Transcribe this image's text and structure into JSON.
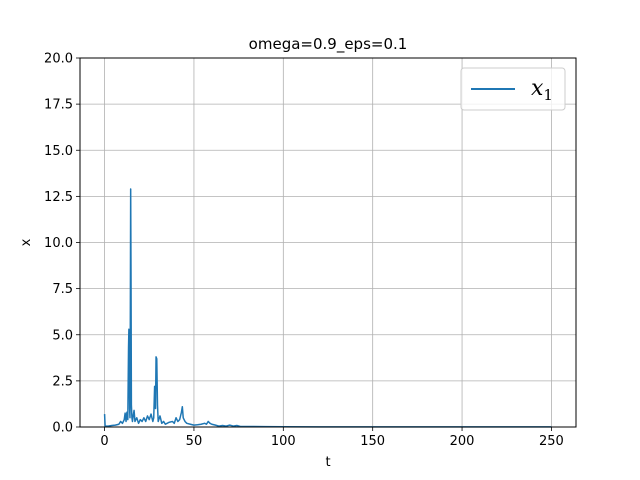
{
  "chart_data": {
    "type": "line",
    "title": "omega=0.9_eps=0.1",
    "xlabel": "t",
    "ylabel": "x",
    "xlim": [
      -13.75,
      263.75
    ],
    "ylim": [
      0,
      20
    ],
    "xticks": [
      0,
      50,
      100,
      150,
      200,
      250
    ],
    "yticks": [
      0.0,
      2.5,
      5.0,
      7.5,
      10.0,
      12.5,
      15.0,
      17.5,
      20.0
    ],
    "xtick_labels": [
      "0",
      "50",
      "100",
      "150",
      "200",
      "250"
    ],
    "ytick_labels": [
      "0.0",
      "2.5",
      "5.0",
      "7.5",
      "10.0",
      "12.5",
      "15.0",
      "17.5",
      "20.0"
    ],
    "grid": true,
    "legend": {
      "placement": "top-right",
      "entries": [
        {
          "name": "x",
          "subscript": "1",
          "color": "#1f77b4"
        }
      ]
    },
    "series": [
      {
        "name": "x_1",
        "color": "#1f77b4",
        "points": [
          [
            0,
            0.7
          ],
          [
            0.3,
            0.05
          ],
          [
            2,
            0.05
          ],
          [
            4,
            0.08
          ],
          [
            6,
            0.1
          ],
          [
            8,
            0.15
          ],
          [
            9,
            0.3
          ],
          [
            10,
            0.2
          ],
          [
            11,
            0.4
          ],
          [
            11.5,
            0.75
          ],
          [
            12,
            0.3
          ],
          [
            12.5,
            0.8
          ],
          [
            13,
            0.4
          ],
          [
            13.4,
            4.3
          ],
          [
            13.6,
            5.3
          ],
          [
            13.8,
            4.2
          ],
          [
            14,
            1.0
          ],
          [
            14.2,
            0.5
          ],
          [
            14.4,
            5.5
          ],
          [
            14.6,
            12.9
          ],
          [
            14.8,
            8.0
          ],
          [
            15,
            1.2
          ],
          [
            15.3,
            0.5
          ],
          [
            15.6,
            0.3
          ],
          [
            16,
            0.6
          ],
          [
            16.5,
            0.9
          ],
          [
            17,
            0.3
          ],
          [
            18,
            0.5
          ],
          [
            19,
            0.2
          ],
          [
            20,
            0.4
          ],
          [
            21,
            0.3
          ],
          [
            22,
            0.5
          ],
          [
            23,
            0.3
          ],
          [
            24,
            0.6
          ],
          [
            25,
            0.4
          ],
          [
            26,
            0.7
          ],
          [
            27,
            0.3
          ],
          [
            27.5,
            0.5
          ],
          [
            28,
            2.2
          ],
          [
            28.5,
            1.0
          ],
          [
            28.8,
            3.8
          ],
          [
            29.2,
            3.7
          ],
          [
            29.6,
            1.2
          ],
          [
            30,
            0.3
          ],
          [
            31,
            0.6
          ],
          [
            32,
            0.2
          ],
          [
            33,
            0.3
          ],
          [
            34,
            0.15
          ],
          [
            35,
            0.2
          ],
          [
            36,
            0.25
          ],
          [
            38,
            0.3
          ],
          [
            39,
            0.2
          ],
          [
            40,
            0.5
          ],
          [
            41,
            0.3
          ],
          [
            42,
            0.4
          ],
          [
            43,
            0.8
          ],
          [
            43.5,
            1.1
          ],
          [
            44,
            0.5
          ],
          [
            45,
            0.3
          ],
          [
            46,
            0.2
          ],
          [
            48,
            0.15
          ],
          [
            50,
            0.1
          ],
          [
            52,
            0.12
          ],
          [
            54,
            0.15
          ],
          [
            56,
            0.2
          ],
          [
            57,
            0.15
          ],
          [
            58,
            0.3
          ],
          [
            59,
            0.2
          ],
          [
            60,
            0.15
          ],
          [
            62,
            0.1
          ],
          [
            64,
            0.05
          ],
          [
            66,
            0.08
          ],
          [
            68,
            0.05
          ],
          [
            70,
            0.1
          ],
          [
            72,
            0.05
          ],
          [
            74,
            0.08
          ],
          [
            76,
            0.03
          ],
          [
            80,
            0.03
          ],
          [
            90,
            0.02
          ],
          [
            100,
            0.015
          ],
          [
            120,
            0.01
          ],
          [
            150,
            0.01
          ],
          [
            200,
            0.005
          ],
          [
            250,
            0.005
          ]
        ]
      }
    ]
  }
}
